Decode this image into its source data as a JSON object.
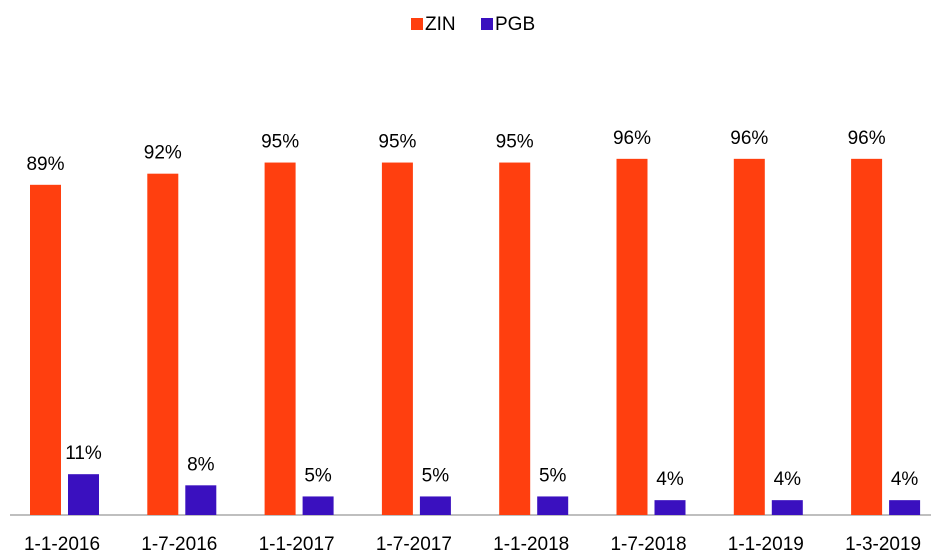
{
  "chart_data": {
    "type": "bar",
    "categories": [
      "1-1-2016",
      "1-7-2016",
      "1-1-2017",
      "1-7-2017",
      "1-1-2018",
      "1-7-2018",
      "1-1-2019",
      "1-3-2019"
    ],
    "series": [
      {
        "name": "ZIN",
        "color": "#ff3f0f",
        "values": [
          89,
          92,
          95,
          95,
          95,
          96,
          96,
          96
        ],
        "value_labels": [
          "89%",
          "92%",
          "95%",
          "95%",
          "95%",
          "96%",
          "96%",
          "96%"
        ]
      },
      {
        "name": "PGB",
        "color": "#3a10bf",
        "values": [
          11,
          8,
          5,
          5,
          5,
          4,
          4,
          4
        ],
        "value_labels": [
          "11%",
          "8%",
          "5%",
          "5%",
          "5%",
          "4%",
          "4%",
          "4%"
        ]
      }
    ],
    "legend": "top"
  }
}
